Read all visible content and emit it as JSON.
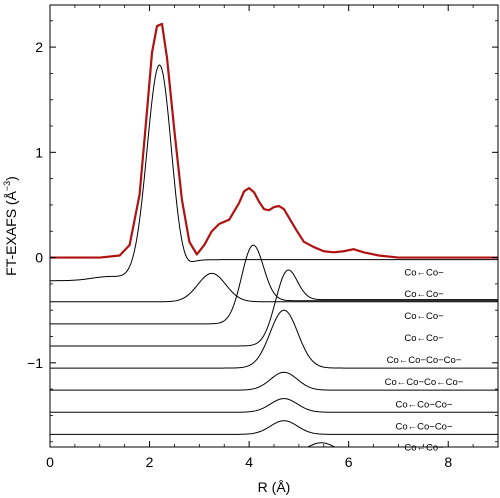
{
  "chart_data": {
    "type": "line",
    "xlabel": "R (Å)",
    "ylabel": "FT-EXAFS (Å",
    "ylabel_sup": "−3",
    "ylabel_close": ")",
    "xlim": [
      0,
      9
    ],
    "ylim": [
      -1.8,
      2.4
    ],
    "xticks": [
      0,
      2,
      4,
      6,
      8
    ],
    "xtick_labels": [
      "0",
      "2",
      "4",
      "6",
      "8"
    ],
    "yticks": [
      -1,
      0,
      1,
      2
    ],
    "ytick_labels": [
      "−1",
      "0",
      "1",
      "2"
    ],
    "colors": {
      "total": "#b01212",
      "components": "#000000",
      "frame": "#000000"
    },
    "total": {
      "x": [
        0,
        1.0,
        1.4,
        1.6,
        1.8,
        1.95,
        2.05,
        2.15,
        2.25,
        2.35,
        2.5,
        2.65,
        2.8,
        2.95,
        3.1,
        3.25,
        3.4,
        3.6,
        3.8,
        3.9,
        4.0,
        4.1,
        4.2,
        4.3,
        4.4,
        4.5,
        4.6,
        4.7,
        4.8,
        4.95,
        5.1,
        5.3,
        5.5,
        5.7,
        5.9,
        6.1,
        6.3,
        6.6,
        7.0,
        8.0,
        9.0
      ],
      "y": [
        0,
        0,
        0.02,
        0.12,
        0.6,
        1.4,
        1.95,
        2.2,
        2.22,
        1.9,
        1.2,
        0.55,
        0.15,
        0.03,
        0.12,
        0.25,
        0.32,
        0.36,
        0.52,
        0.63,
        0.66,
        0.62,
        0.53,
        0.46,
        0.45,
        0.48,
        0.49,
        0.46,
        0.38,
        0.26,
        0.15,
        0.1,
        0.06,
        0.05,
        0.06,
        0.08,
        0.05,
        0.02,
        0,
        0,
        0
      ]
    },
    "components": [
      {
        "label": "Co←Co−",
        "offset": -0.22,
        "shape": "first",
        "peak": 2.05
      },
      {
        "label": "Co←Co−",
        "offset": -0.42,
        "mu": 3.25,
        "sigma": 0.28,
        "amp": 0.27,
        "tail": 0
      },
      {
        "label": "Co←Co−",
        "offset": -0.63,
        "mu": 4.05,
        "sigma": 0.22,
        "amp": 0.63,
        "tail": 0.22
      },
      {
        "label": "Co←Co−",
        "offset": -0.84,
        "mu": 4.7,
        "sigma": 0.22,
        "amp": 0.46,
        "tail": 0.44
      },
      {
        "label": "Co←Co−Co−Co−",
        "offset": -1.05,
        "mu": 4.7,
        "sigma": 0.28,
        "amp": 0.55,
        "tail": 0
      },
      {
        "label": "Co←Co−Co←Co−",
        "offset": -1.26,
        "mu": 4.7,
        "sigma": 0.27,
        "amp": 0.17,
        "tail": 0
      },
      {
        "label": "Co←Co−Co−",
        "offset": -1.47,
        "mu": 4.7,
        "sigma": 0.27,
        "amp": 0.13,
        "tail": 0
      },
      {
        "label": "Co←Co−Co−",
        "offset": -1.68,
        "mu": 4.7,
        "sigma": 0.27,
        "amp": 0.13,
        "tail": 0
      },
      {
        "label": "Co←Co−",
        "offset": -1.88,
        "mu": 5.45,
        "sigma": 0.3,
        "amp": 0.12,
        "tail": 0
      }
    ]
  }
}
